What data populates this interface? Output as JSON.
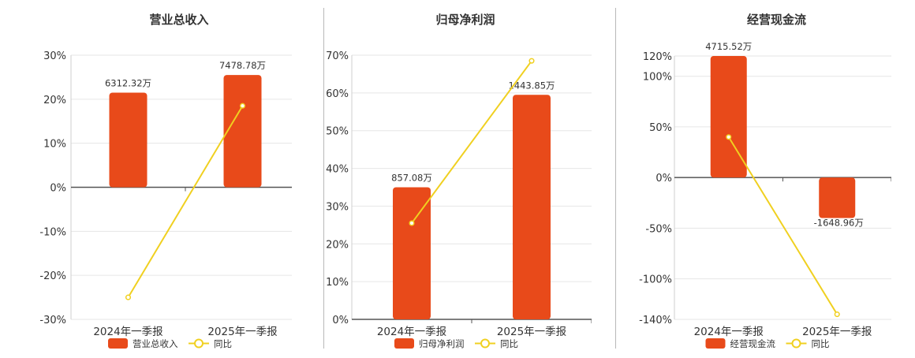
{
  "colors": {
    "bar": "#e84a1a",
    "line": "#f0d020",
    "grid": "#e6e6e6",
    "axis": "#555555",
    "text": "#333333"
  },
  "chart_data": [
    {
      "type": "bar",
      "title": "营业总收入",
      "categories": [
        "2024年一季报",
        "2025年一季报"
      ],
      "series": [
        {
          "name": "营业总收入",
          "type": "bar",
          "values": [
            21.5,
            25.5
          ],
          "labels": [
            "6312.32万",
            "7478.78万"
          ]
        },
        {
          "name": "同比",
          "type": "line",
          "values": [
            -25,
            18.5
          ]
        }
      ],
      "ylim": [
        -30,
        30
      ],
      "yticks": [
        30,
        20,
        10,
        0,
        -10,
        -20,
        -30
      ],
      "ytick_labels": [
        "30%",
        "20%",
        "10%",
        "0%",
        "-10%",
        "-20%",
        "-30%"
      ],
      "legend": [
        "营业总收入",
        "同比"
      ],
      "legend_position": "bottom",
      "grid": true
    },
    {
      "type": "bar",
      "title": "归母净利润",
      "categories": [
        "2024年一季报",
        "2025年一季报"
      ],
      "series": [
        {
          "name": "归母净利润",
          "type": "bar",
          "values": [
            35,
            59.5
          ],
          "labels": [
            "857.08万",
            "1443.85万"
          ]
        },
        {
          "name": "同比",
          "type": "line",
          "values": [
            25.5,
            68.5
          ]
        }
      ],
      "ylim": [
        0,
        70
      ],
      "yticks": [
        70,
        60,
        50,
        40,
        30,
        20,
        10,
        0
      ],
      "ytick_labels": [
        "70%",
        "60%",
        "50%",
        "40%",
        "30%",
        "20%",
        "10%",
        "0%"
      ],
      "legend": [
        "归母净利润",
        "同比"
      ],
      "legend_position": "bottom",
      "grid": true
    },
    {
      "type": "bar",
      "title": "经营现金流",
      "categories": [
        "2024年一季报",
        "2025年一季报"
      ],
      "series": [
        {
          "name": "经营现金流",
          "type": "bar",
          "values": [
            120,
            -40
          ],
          "labels": [
            "4715.52万",
            "-1648.96万"
          ]
        },
        {
          "name": "同比",
          "type": "line",
          "values": [
            40,
            -135
          ]
        }
      ],
      "ylim": [
        -140,
        120
      ],
      "yticks": [
        120,
        100,
        50,
        0,
        -50,
        -100,
        -140
      ],
      "ytick_labels": [
        "120%",
        "100%",
        "50%",
        "0%",
        "-50%",
        "-100%",
        "-140%"
      ],
      "legend": [
        "经营现金流",
        "同比"
      ],
      "legend_position": "bottom",
      "grid": true
    }
  ]
}
